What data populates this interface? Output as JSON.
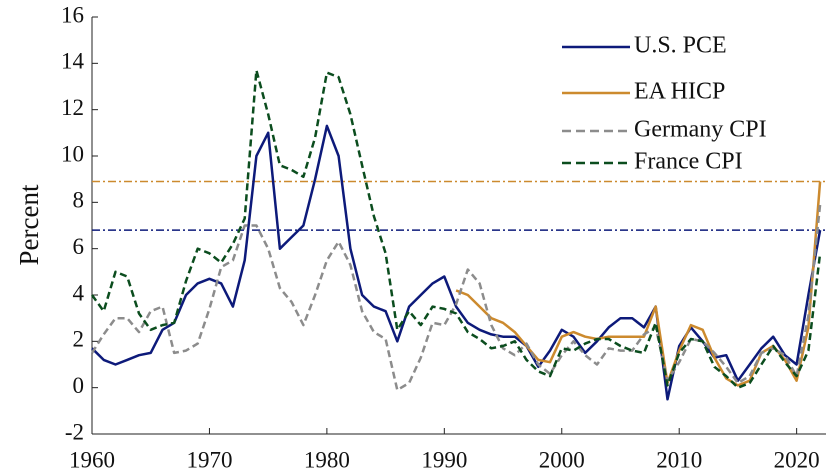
{
  "chart_data": {
    "type": "line",
    "y_label": "Percent",
    "x": [
      1960,
      1961,
      1962,
      1963,
      1964,
      1965,
      1966,
      1967,
      1968,
      1969,
      1970,
      1971,
      1972,
      1973,
      1974,
      1975,
      1976,
      1977,
      1978,
      1979,
      1980,
      1981,
      1982,
      1983,
      1984,
      1985,
      1986,
      1987,
      1988,
      1989,
      1990,
      1991,
      1992,
      1993,
      1994,
      1995,
      1996,
      1997,
      1998,
      1999,
      2000,
      2001,
      2002,
      2003,
      2004,
      2005,
      2006,
      2007,
      2008,
      2009,
      2010,
      2011,
      2012,
      2013,
      2014,
      2015,
      2016,
      2017,
      2018,
      2019,
      2020,
      2021,
      2022
    ],
    "series": [
      {
        "name": "U.S. PCE",
        "color": "#0d1a7a",
        "style": "solid",
        "values": [
          1.7,
          1.2,
          1.0,
          1.2,
          1.4,
          1.5,
          2.5,
          2.8,
          4.0,
          4.5,
          4.7,
          4.5,
          3.5,
          5.5,
          10.0,
          11.0,
          6.0,
          6.5,
          7.0,
          9.0,
          11.3,
          10.0,
          6.0,
          4.0,
          3.5,
          3.3,
          2.0,
          3.5,
          4.0,
          4.5,
          4.8,
          3.5,
          2.8,
          2.5,
          2.3,
          2.2,
          2.2,
          1.8,
          0.9,
          1.6,
          2.5,
          2.2,
          1.5,
          2.0,
          2.6,
          3.0,
          3.0,
          2.6,
          3.5,
          -0.5,
          1.8,
          2.6,
          2.0,
          1.3,
          1.4,
          0.3,
          1.0,
          1.7,
          2.2,
          1.4,
          1.0,
          4.0,
          6.8
        ]
      },
      {
        "name": "EA HICP",
        "color": "#cc8a2e",
        "style": "solid",
        "values": [
          null,
          null,
          null,
          null,
          null,
          null,
          null,
          null,
          null,
          null,
          null,
          null,
          null,
          null,
          null,
          null,
          null,
          null,
          null,
          null,
          null,
          null,
          null,
          null,
          null,
          null,
          null,
          null,
          null,
          null,
          null,
          4.2,
          4.0,
          3.5,
          3.0,
          2.8,
          2.4,
          1.8,
          1.2,
          1.1,
          2.2,
          2.4,
          2.2,
          2.1,
          2.2,
          2.2,
          2.2,
          2.2,
          3.5,
          0.2,
          1.6,
          2.7,
          2.5,
          1.3,
          0.4,
          0.1,
          0.3,
          1.5,
          1.8,
          1.2,
          0.3,
          2.6,
          8.9
        ]
      },
      {
        "name": "Germany CPI",
        "color": "#8c8c8c",
        "style": "dashed",
        "values": [
          1.5,
          2.3,
          3.0,
          3.0,
          2.4,
          3.3,
          3.5,
          1.5,
          1.6,
          1.9,
          3.4,
          5.2,
          5.5,
          7.0,
          7.0,
          6.0,
          4.3,
          3.7,
          2.7,
          4.0,
          5.5,
          6.3,
          5.3,
          3.3,
          2.4,
          2.1,
          -0.1,
          0.2,
          1.3,
          2.8,
          2.7,
          3.6,
          5.1,
          4.5,
          2.7,
          1.7,
          1.4,
          1.9,
          1.0,
          0.6,
          1.4,
          2.0,
          1.4,
          1.0,
          1.7,
          1.6,
          1.6,
          2.3,
          2.6,
          0.3,
          1.1,
          2.1,
          2.0,
          1.5,
          0.9,
          0.2,
          0.5,
          1.5,
          1.7,
          1.4,
          0.5,
          3.1,
          7.9
        ]
      },
      {
        "name": "France CPI",
        "color": "#0b4d1e",
        "style": "dashed",
        "values": [
          4.0,
          3.3,
          5.0,
          4.8,
          3.2,
          2.5,
          2.7,
          2.8,
          4.6,
          6.0,
          5.8,
          5.4,
          6.2,
          7.3,
          13.7,
          11.8,
          9.6,
          9.4,
          9.1,
          10.8,
          13.6,
          13.4,
          11.8,
          9.6,
          7.4,
          5.8,
          2.5,
          3.3,
          2.7,
          3.5,
          3.4,
          3.2,
          2.4,
          2.1,
          1.7,
          1.8,
          2.0,
          1.2,
          0.7,
          0.5,
          1.7,
          1.6,
          1.9,
          2.1,
          2.1,
          1.8,
          1.6,
          1.5,
          2.8,
          0.1,
          1.5,
          2.1,
          2.0,
          0.9,
          0.5,
          0.0,
          0.2,
          1.0,
          1.8,
          1.1,
          0.5,
          1.6,
          5.8
        ]
      }
    ],
    "reference_lines": [
      {
        "value": 8.9,
        "color": "#cc8a2e"
      },
      {
        "value": 6.8,
        "color": "#0d1a7a"
      }
    ],
    "xlim": [
      1960,
      2022.5
    ],
    "xticks": [
      1960,
      1970,
      1980,
      1990,
      2000,
      2010,
      2020
    ],
    "ylim": [
      -2,
      16
    ],
    "yticks": [
      -2,
      0,
      2,
      4,
      6,
      8,
      10,
      12,
      14,
      16
    ],
    "legend": "upper right"
  }
}
